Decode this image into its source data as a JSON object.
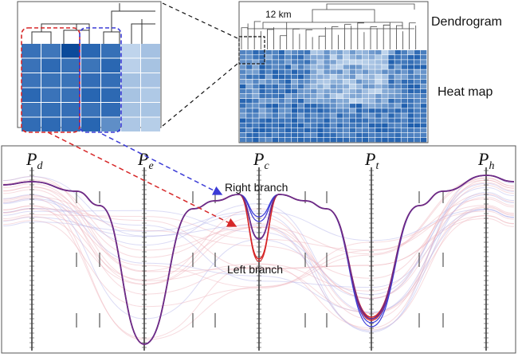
{
  "labels": {
    "dendrogram": "Dendrogram",
    "heat_map": "Heat map",
    "scale": "12 km",
    "right_branch": "Right branch",
    "left_branch": "Left branch"
  },
  "axes": [
    {
      "symbol": "P",
      "subscript": "d"
    },
    {
      "symbol": "P",
      "subscript": "e"
    },
    {
      "symbol": "P",
      "subscript": "c"
    },
    {
      "symbol": "P",
      "subscript": "t"
    },
    {
      "symbol": "P",
      "subscript": "h"
    }
  ],
  "colors": {
    "red_branch": "#d62728",
    "blue_branch": "#3b3bd6",
    "purple_line": "#6a2c8a",
    "heat_dark": "#1f5fae",
    "heat_light": "#d7e6f5",
    "frame": "#555555"
  }
}
